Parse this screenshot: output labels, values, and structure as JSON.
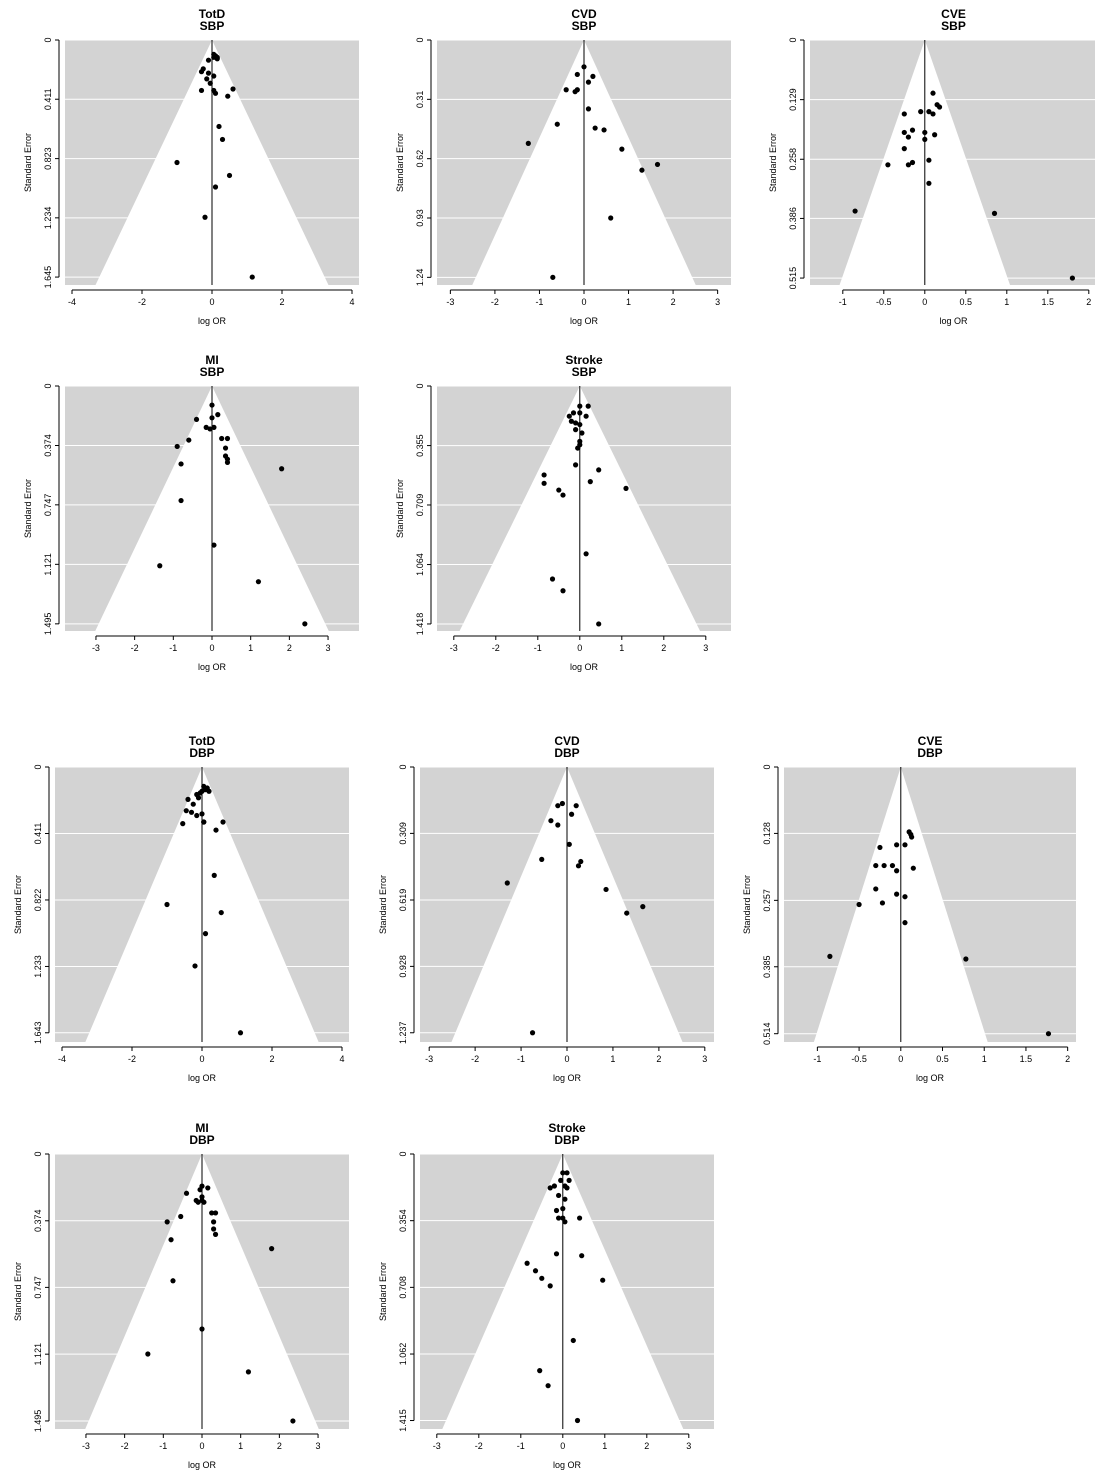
{
  "chart_data": [
    {
      "type": "scatter",
      "title": "TotD",
      "subtitle": "SBP",
      "xlabel": "log OR",
      "ylabel": "Standard Error",
      "xlim": [
        -4.2,
        4.2
      ],
      "xticks": [
        -4,
        -2,
        0,
        2,
        4
      ],
      "ylim": [
        1.7,
        0
      ],
      "yticks": [
        0,
        0.411,
        0.823,
        1.234,
        1.645
      ],
      "ytick_labels": [
        "0",
        "0.411",
        "0.823",
        "1.234",
        "1.645"
      ],
      "funnel_half_width_at_max_se": 3.22,
      "grid": true,
      "background": "#d3d3d3",
      "x": [
        0.05,
        0.1,
        0.15,
        0.05,
        0.15,
        -0.1,
        -0.25,
        -0.3,
        -0.1,
        0.05,
        -0.15,
        -0.05,
        -0.3,
        0.05,
        0.6,
        0.1,
        0.45,
        0.2,
        0.3,
        -1.0,
        0.5,
        0.1,
        -0.2,
        1.15
      ],
      "y": [
        0.1,
        0.11,
        0.12,
        0.12,
        0.13,
        0.14,
        0.2,
        0.22,
        0.23,
        0.25,
        0.27,
        0.3,
        0.35,
        0.35,
        0.34,
        0.37,
        0.39,
        0.6,
        0.69,
        0.85,
        0.94,
        1.02,
        1.23,
        1.645
      ]
    },
    {
      "type": "scatter",
      "title": "CVD",
      "subtitle": "SBP",
      "xlabel": "log OR",
      "ylabel": "Standard Error",
      "xlim": [
        -3.3,
        3.3
      ],
      "xticks": [
        -3,
        -2,
        -1,
        0,
        1,
        2,
        3
      ],
      "yticks": [
        0,
        0.31,
        0.62,
        0.93,
        1.24
      ],
      "ytick_labels": [
        "0",
        "0.31",
        "0.62",
        "0.93",
        "1.24"
      ],
      "ylim": [
        1.28,
        0
      ],
      "funnel_half_width_at_max_se": 2.43,
      "grid": true,
      "background": "#d3d3d3",
      "x": [
        0.0,
        -0.15,
        0.2,
        0.1,
        -0.4,
        -0.15,
        -0.2,
        0.1,
        -0.6,
        0.25,
        0.45,
        -1.25,
        0.85,
        1.65,
        1.3,
        0.6,
        -0.7
      ],
      "y": [
        0.14,
        0.18,
        0.19,
        0.22,
        0.26,
        0.26,
        0.27,
        0.36,
        0.44,
        0.46,
        0.47,
        0.54,
        0.57,
        0.65,
        0.68,
        0.93,
        1.24
      ]
    },
    {
      "type": "scatter",
      "title": "CVE",
      "subtitle": "SBP",
      "xlabel": "log OR",
      "ylabel": "Standard Error",
      "xlim": [
        -1.4,
        2.1
      ],
      "xticks": [
        -1,
        -0.5,
        0,
        0.5,
        1,
        1.5,
        2
      ],
      "ytick_labels": [
        "0",
        "0.129",
        "0.258",
        "0.386",
        "0.515"
      ],
      "yticks": [
        0,
        0.129,
        0.258,
        0.386,
        0.515
      ],
      "ylim": [
        0.53,
        0
      ],
      "funnel_half_width_at_max_se": 1.01,
      "grid": true,
      "background": "#d3d3d3",
      "x": [
        0.1,
        0.15,
        0.18,
        -0.05,
        0.05,
        0.1,
        -0.25,
        -0.15,
        -0.25,
        0.0,
        0.12,
        -0.2,
        -0.25,
        0.0,
        0.05,
        -0.15,
        -0.2,
        -0.45,
        0.05,
        -0.85,
        0.85,
        1.8
      ],
      "y": [
        0.115,
        0.14,
        0.145,
        0.155,
        0.155,
        0.16,
        0.16,
        0.195,
        0.2,
        0.2,
        0.205,
        0.21,
        0.235,
        0.215,
        0.26,
        0.265,
        0.27,
        0.27,
        0.31,
        0.37,
        0.375,
        0.515
      ]
    },
    {
      "type": "scatter",
      "title": "MI",
      "subtitle": "SBP",
      "xlabel": "log OR",
      "ylabel": "Standard Error",
      "xlim": [
        -3.8,
        3.8
      ],
      "xticks": [
        -3,
        -2,
        -1,
        0,
        1,
        2,
        3
      ],
      "ytick_labels": [
        "0",
        "0.374",
        "0.747",
        "1.121",
        "1.495"
      ],
      "yticks": [
        0,
        0.374,
        0.747,
        1.121,
        1.495
      ],
      "ylim": [
        1.54,
        0
      ],
      "funnel_half_width_at_max_se": 2.93,
      "grid": true,
      "background": "#d3d3d3",
      "x": [
        0.0,
        0.15,
        0.0,
        -0.4,
        0.05,
        -0.15,
        -0.05,
        -0.6,
        0.25,
        0.4,
        -0.9,
        0.35,
        0.35,
        0.4,
        0.4,
        -0.8,
        1.8,
        -0.8,
        0.05,
        -1.35,
        1.2,
        2.4
      ],
      "y": [
        0.12,
        0.18,
        0.2,
        0.21,
        0.26,
        0.26,
        0.27,
        0.34,
        0.33,
        0.33,
        0.38,
        0.39,
        0.44,
        0.46,
        0.48,
        0.49,
        0.52,
        0.72,
        1.0,
        1.13,
        1.23,
        1.495
      ]
    },
    {
      "type": "scatter",
      "title": "Stroke",
      "subtitle": "SBP",
      "xlabel": "log OR",
      "ylabel": "Standard Error",
      "xlim": [
        -3.4,
        3.6
      ],
      "xticks": [
        -3,
        -2,
        -1,
        0,
        1,
        2,
        3
      ],
      "ytick_labels": [
        "0",
        "0.355",
        "0.709",
        "1.064",
        "1.418"
      ],
      "yticks": [
        0,
        0.355,
        0.709,
        1.064,
        1.418
      ],
      "ylim": [
        1.46,
        0
      ],
      "funnel_half_width_at_max_se": 2.78,
      "grid": true,
      "background": "#d3d3d3",
      "x": [
        0.0,
        0.2,
        -0.15,
        0.0,
        -0.25,
        0.15,
        -0.2,
        -0.1,
        0.0,
        -0.1,
        0.05,
        0.0,
        0.0,
        -0.05,
        -0.1,
        0.45,
        -0.85,
        0.25,
        -0.85,
        1.1,
        -0.5,
        -0.4,
        0.15,
        -0.65,
        -0.4,
        0.45
      ],
      "y": [
        0.12,
        0.12,
        0.16,
        0.16,
        0.18,
        0.18,
        0.21,
        0.22,
        0.23,
        0.26,
        0.28,
        0.33,
        0.35,
        0.37,
        0.47,
        0.5,
        0.53,
        0.57,
        0.58,
        0.61,
        0.62,
        0.65,
        1.0,
        1.15,
        1.22,
        1.418
      ]
    },
    {
      "type": "scatter",
      "title": "TotD",
      "subtitle": "DBP",
      "xlabel": "log OR",
      "ylabel": "Standard Error",
      "xlim": [
        -4.2,
        4.2
      ],
      "xticks": [
        -4,
        -2,
        0,
        2,
        4
      ],
      "ytick_labels": [
        "0",
        "0.411",
        "0.822",
        "1.233",
        "1.643"
      ],
      "yticks": [
        0,
        0.411,
        0.822,
        1.233,
        1.643
      ],
      "ylim": [
        1.7,
        0
      ],
      "funnel_half_width_at_max_se": 3.22,
      "grid": true,
      "background": "#d3d3d3",
      "x": [
        0.05,
        0.15,
        0.1,
        0.0,
        0.2,
        -0.05,
        -0.15,
        -0.1,
        -0.4,
        -0.25,
        -0.45,
        -0.3,
        0.0,
        -0.15,
        0.05,
        -0.55,
        0.05,
        0.6,
        0.4,
        0.35,
        -1.0,
        0.55,
        0.1,
        -0.2,
        1.1
      ],
      "y": [
        0.12,
        0.13,
        0.14,
        0.15,
        0.15,
        0.16,
        0.17,
        0.19,
        0.2,
        0.23,
        0.27,
        0.28,
        0.29,
        0.3,
        0.34,
        0.35,
        0.34,
        0.34,
        0.39,
        0.67,
        0.85,
        0.9,
        1.03,
        1.23,
        1.643
      ]
    },
    {
      "type": "scatter",
      "title": "CVD",
      "subtitle": "DBP",
      "xlabel": "log OR",
      "ylabel": "Standard Error",
      "xlim": [
        -3.2,
        3.2
      ],
      "xticks": [
        -3,
        -2,
        -1,
        0,
        1,
        2,
        3
      ],
      "ytick_labels": [
        "0",
        "0.309",
        "0.619",
        "0.928",
        "1.237"
      ],
      "yticks": [
        0,
        0.309,
        0.619,
        0.928,
        1.237
      ],
      "ylim": [
        1.28,
        0
      ],
      "funnel_half_width_at_max_se": 2.43,
      "grid": true,
      "background": "#d3d3d3",
      "x": [
        -0.1,
        -0.2,
        0.2,
        0.1,
        -0.35,
        -0.2,
        0.05,
        -0.55,
        0.3,
        0.25,
        -1.3,
        0.85,
        1.65,
        1.3,
        -0.75
      ],
      "y": [
        0.17,
        0.18,
        0.18,
        0.22,
        0.25,
        0.27,
        0.36,
        0.43,
        0.44,
        0.46,
        0.54,
        0.57,
        0.65,
        0.68,
        1.237
      ]
    },
    {
      "type": "scatter",
      "title": "CVE",
      "subtitle": "DBP",
      "xlabel": "log OR",
      "ylabel": "Standard Error",
      "xlim": [
        -1.4,
        2.1
      ],
      "xticks": [
        -1,
        -0.5,
        0,
        0.5,
        1,
        1.5,
        2
      ],
      "ytick_labels": [
        "0",
        "0.128",
        "0.257",
        "0.385",
        "0.514"
      ],
      "yticks": [
        0,
        0.128,
        0.257,
        0.385,
        0.514
      ],
      "ylim": [
        0.53,
        0
      ],
      "funnel_half_width_at_max_se": 1.01,
      "grid": true,
      "background": "#d3d3d3",
      "x": [
        0.1,
        0.12,
        0.13,
        -0.05,
        0.05,
        -0.25,
        -0.3,
        -0.2,
        -0.1,
        -0.05,
        0.15,
        -0.3,
        -0.05,
        0.05,
        -0.5,
        -0.22,
        0.05,
        -0.85,
        0.78,
        1.77
      ],
      "y": [
        0.125,
        0.13,
        0.135,
        0.15,
        0.15,
        0.155,
        0.19,
        0.19,
        0.19,
        0.2,
        0.195,
        0.235,
        0.245,
        0.25,
        0.265,
        0.262,
        0.3,
        0.365,
        0.37,
        0.514
      ]
    },
    {
      "type": "scatter",
      "title": "MI",
      "subtitle": "DBP",
      "xlabel": "log OR",
      "ylabel": "Standard Error",
      "xlim": [
        -3.8,
        3.8
      ],
      "xticks": [
        -3,
        -2,
        -1,
        0,
        1,
        2,
        3
      ],
      "ytick_labels": [
        "0",
        "0.374",
        "0.747",
        "1.121",
        "1.495"
      ],
      "yticks": [
        0,
        0.374,
        0.747,
        1.121,
        1.495
      ],
      "ylim": [
        1.54,
        0
      ],
      "funnel_half_width_at_max_se": 2.93,
      "grid": true,
      "background": "#d3d3d3",
      "x": [
        0.0,
        0.15,
        -0.05,
        0.0,
        -0.4,
        0.0,
        -0.15,
        -0.1,
        0.05,
        0.25,
        0.35,
        -0.55,
        -0.9,
        0.3,
        0.3,
        0.35,
        -0.8,
        1.8,
        -0.75,
        0.0,
        -1.4,
        1.2,
        2.35
      ],
      "y": [
        0.18,
        0.19,
        0.2,
        0.24,
        0.22,
        0.26,
        0.26,
        0.27,
        0.27,
        0.33,
        0.33,
        0.35,
        0.38,
        0.38,
        0.42,
        0.45,
        0.48,
        0.53,
        0.71,
        0.98,
        1.12,
        1.22,
        1.495
      ]
    },
    {
      "type": "scatter",
      "title": "Stroke",
      "subtitle": "DBP",
      "xlabel": "log OR",
      "ylabel": "Standard Error",
      "xlim": [
        -3.4,
        3.6
      ],
      "xticks": [
        -3,
        -2,
        -1,
        0,
        1,
        2,
        3
      ],
      "ytick_labels": [
        "0",
        "0.354",
        "0.708",
        "1.062",
        "1.415"
      ],
      "yticks": [
        0,
        0.354,
        0.708,
        1.062,
        1.415
      ],
      "ylim": [
        1.46,
        0
      ],
      "funnel_half_width_at_max_se": 2.78,
      "grid": true,
      "background": "#d3d3d3",
      "x": [
        0.0,
        0.1,
        0.15,
        -0.05,
        0.05,
        -0.2,
        0.1,
        -0.3,
        -0.1,
        0.05,
        0.0,
        -0.15,
        -0.1,
        0.0,
        0.05,
        0.4,
        0.45,
        -0.15,
        -0.85,
        -0.65,
        0.95,
        -0.5,
        -0.3,
        0.25,
        -0.55,
        -0.35,
        0.35
      ],
      "y": [
        0.1,
        0.1,
        0.14,
        0.14,
        0.17,
        0.17,
        0.18,
        0.18,
        0.22,
        0.24,
        0.29,
        0.3,
        0.34,
        0.34,
        0.36,
        0.34,
        0.54,
        0.53,
        0.58,
        0.62,
        0.67,
        0.66,
        0.7,
        0.99,
        1.15,
        1.23,
        1.415
      ]
    }
  ]
}
